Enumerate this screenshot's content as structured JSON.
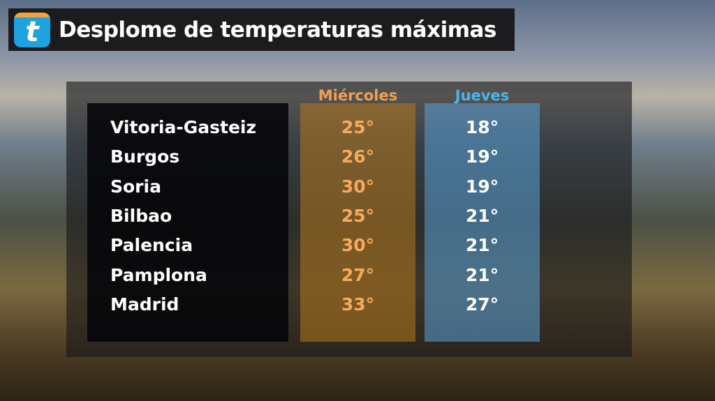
{
  "header": {
    "logo": "t",
    "title": "Desplome de temperaturas máximas"
  },
  "table": {
    "columns": [
      "Miércoles",
      "Jueves"
    ],
    "rows": [
      [
        "Vitoria-Gasteiz",
        "25°",
        "18°"
      ],
      [
        "Burgos",
        "26°",
        "19°"
      ],
      [
        "Soria",
        "30°",
        "19°"
      ],
      [
        "Bilbao",
        "25°",
        "21°"
      ],
      [
        "Palencia",
        "30°",
        "21°"
      ],
      [
        "Pamplona",
        "27°",
        "21°"
      ],
      [
        "Madrid",
        "33°",
        "27°"
      ]
    ]
  }
}
